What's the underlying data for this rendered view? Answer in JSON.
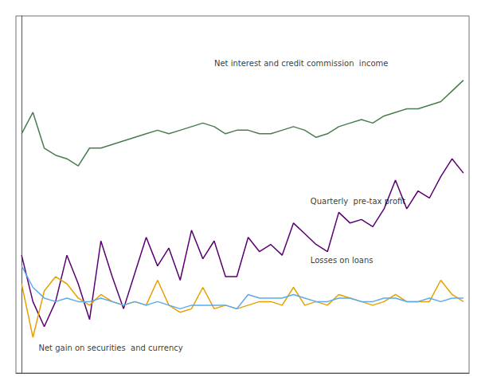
{
  "chart_data": {
    "type": "line",
    "x": [
      0,
      1,
      2,
      3,
      4,
      5,
      6,
      7,
      8,
      9,
      10,
      11,
      12,
      13,
      14,
      15,
      16,
      17,
      18,
      19,
      20,
      21,
      22,
      23,
      24,
      25,
      26,
      27,
      28,
      29,
      30,
      31,
      32,
      33,
      34,
      35,
      36,
      37,
      38,
      39
    ],
    "xlim": [
      -0.5,
      39.5
    ],
    "ylim": [
      0.5,
      10.5
    ],
    "xticks": [],
    "yticks": [],
    "tick_labels": false,
    "grid": false,
    "series": [
      {
        "color": "#4a7c4e",
        "values": [
          7.2,
          7.8,
          6.8,
          6.6,
          6.5,
          6.3,
          6.8,
          6.8,
          6.9,
          7.0,
          7.1,
          7.2,
          7.3,
          7.2,
          7.3,
          7.4,
          7.5,
          7.4,
          7.2,
          7.3,
          7.3,
          7.2,
          7.2,
          7.3,
          7.4,
          7.3,
          7.1,
          7.2,
          7.4,
          7.5,
          7.6,
          7.5,
          7.7,
          7.8,
          7.9,
          7.9,
          8.0,
          8.1,
          8.4,
          8.7
        ]
      },
      {
        "color": "#5b0070",
        "values": [
          3.8,
          2.5,
          1.8,
          2.5,
          3.8,
          3.0,
          2.0,
          4.2,
          3.2,
          2.3,
          3.3,
          4.3,
          3.5,
          4.0,
          3.1,
          4.5,
          3.7,
          4.2,
          3.2,
          3.2,
          4.3,
          3.9,
          4.1,
          3.8,
          4.7,
          4.4,
          4.1,
          3.9,
          5.0,
          4.7,
          4.8,
          4.6,
          5.1,
          5.9,
          5.1,
          5.6,
          5.4,
          6.0,
          6.5,
          6.1
        ]
      },
      {
        "color": "#e8a000",
        "values": [
          3.0,
          1.5,
          2.8,
          3.2,
          3.0,
          2.6,
          2.4,
          2.7,
          2.5,
          2.4,
          2.5,
          2.4,
          3.1,
          2.4,
          2.2,
          2.3,
          2.9,
          2.3,
          2.4,
          2.3,
          2.4,
          2.5,
          2.5,
          2.4,
          2.9,
          2.4,
          2.5,
          2.4,
          2.7,
          2.6,
          2.5,
          2.4,
          2.5,
          2.7,
          2.5,
          2.5,
          2.5,
          3.1,
          2.7,
          2.5
        ]
      },
      {
        "color": "#5aaaee",
        "values": [
          3.5,
          2.9,
          2.6,
          2.5,
          2.6,
          2.5,
          2.5,
          2.6,
          2.5,
          2.4,
          2.5,
          2.4,
          2.5,
          2.4,
          2.3,
          2.4,
          2.4,
          2.4,
          2.4,
          2.3,
          2.7,
          2.6,
          2.6,
          2.6,
          2.7,
          2.6,
          2.5,
          2.5,
          2.6,
          2.6,
          2.5,
          2.5,
          2.6,
          2.6,
          2.5,
          2.5,
          2.6,
          2.5,
          2.6,
          2.6
        ]
      }
    ],
    "annotations": [
      {
        "text": "Net interest and credit commission  income",
        "x": 17,
        "y": 9.05
      },
      {
        "text": "Quarterly  pre-tax profit",
        "x": 25.5,
        "y": 5.2
      },
      {
        "text": "Losses on loans",
        "x": 25.5,
        "y": 3.55
      },
      {
        "text": "Net gain on securities  and currency",
        "x": 1.5,
        "y": 1.1
      }
    ]
  }
}
